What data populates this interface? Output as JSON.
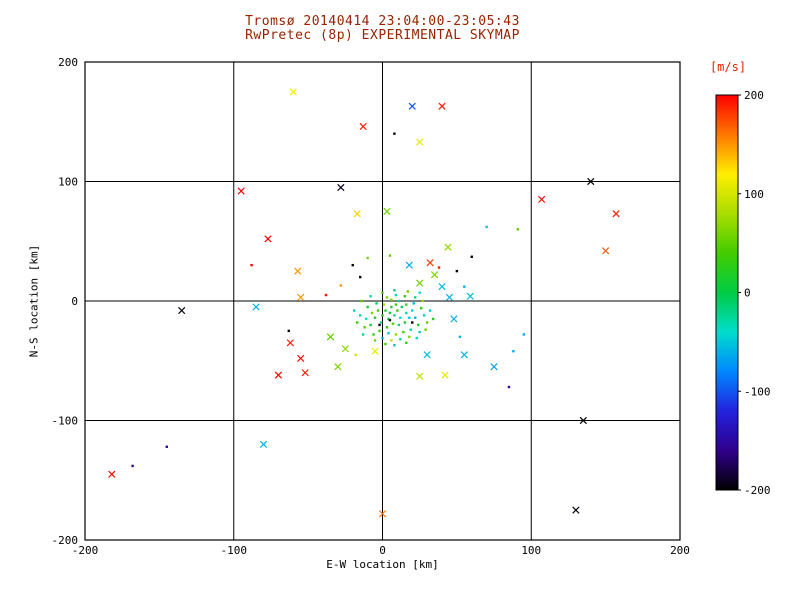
{
  "colors": {
    "background": "#ffffff",
    "title_text": "#992200",
    "colorbar_label": "#ee2200",
    "axis_text": "#000000",
    "plot_frame": "#000000"
  },
  "chart_data": {
    "type": "scatter",
    "title_line1": "Tromsø 20140414 23:04:00-23:05:43",
    "title_line2": "RwPretec (8p) EXPERIMENTAL SKYMAP",
    "xlabel": "E-W location [km]",
    "ylabel": "N-S location [km]",
    "axes": {
      "xlim": [
        -200,
        200
      ],
      "ylim": [
        -200,
        200
      ],
      "xticks": [
        -200,
        -100,
        0,
        100,
        200
      ],
      "yticks": [
        -200,
        -100,
        0,
        100,
        200
      ],
      "grid_lines": [
        -100,
        0,
        100
      ],
      "grid": true
    },
    "colorbar": {
      "label": "[m/s]",
      "ticks": [
        200,
        100,
        0,
        -100,
        -200
      ],
      "vmin": -200,
      "vmax": 200
    },
    "colormap": [
      {
        "v": -200,
        "color": "#000000"
      },
      {
        "v": -160,
        "color": "#30008c"
      },
      {
        "v": -120,
        "color": "#2222dd"
      },
      {
        "v": -80,
        "color": "#0088ff"
      },
      {
        "v": -40,
        "color": "#00ddcc"
      },
      {
        "v": 0,
        "color": "#00cc44"
      },
      {
        "v": 40,
        "color": "#44cc00"
      },
      {
        "v": 80,
        "color": "#aadd00"
      },
      {
        "v": 120,
        "color": "#ffee00"
      },
      {
        "v": 160,
        "color": "#ff7700"
      },
      {
        "v": 200,
        "color": "#ff0000"
      }
    ],
    "point_format": [
      "x_km",
      "y_km",
      "velocity_m_per_s",
      "marker"
    ],
    "points": [
      [
        -60,
        175,
        120,
        "x"
      ],
      [
        20,
        163,
        -100,
        "x"
      ],
      [
        40,
        163,
        190,
        "x"
      ],
      [
        -13,
        146,
        190,
        "x"
      ],
      [
        8,
        140,
        -200,
        "d"
      ],
      [
        25,
        133,
        110,
        "x"
      ],
      [
        -95,
        92,
        200,
        "x"
      ],
      [
        -28,
        95,
        -190,
        "x"
      ],
      [
        140,
        100,
        -200,
        "x"
      ],
      [
        107,
        85,
        195,
        "x"
      ],
      [
        -17,
        73,
        130,
        "x"
      ],
      [
        3,
        75,
        60,
        "x"
      ],
      [
        157,
        73,
        190,
        "x"
      ],
      [
        -77,
        52,
        200,
        "x"
      ],
      [
        150,
        42,
        170,
        "x"
      ],
      [
        91,
        60,
        50,
        "d"
      ],
      [
        44,
        45,
        70,
        "x"
      ],
      [
        60,
        37,
        -200,
        "d"
      ],
      [
        -88,
        30,
        200,
        "d"
      ],
      [
        -57,
        25,
        150,
        "x"
      ],
      [
        -85,
        -5,
        -60,
        "x"
      ],
      [
        -55,
        3,
        150,
        "x"
      ],
      [
        -135,
        -8,
        -195,
        "x"
      ],
      [
        -63,
        -25,
        -200,
        "d"
      ],
      [
        -62,
        -35,
        190,
        "x"
      ],
      [
        -55,
        -48,
        195,
        "x"
      ],
      [
        -70,
        -62,
        200,
        "x"
      ],
      [
        -52,
        -60,
        190,
        "x"
      ],
      [
        30,
        -45,
        -55,
        "x"
      ],
      [
        25,
        -63,
        90,
        "x"
      ],
      [
        42,
        -62,
        110,
        "x"
      ],
      [
        55,
        -45,
        -60,
        "x"
      ],
      [
        75,
        -55,
        -65,
        "x"
      ],
      [
        88,
        -42,
        -60,
        "d"
      ],
      [
        85,
        -72,
        -150,
        "d"
      ],
      [
        -80,
        -120,
        -60,
        "x"
      ],
      [
        135,
        -100,
        -200,
        "x"
      ],
      [
        130,
        -175,
        -195,
        "x"
      ],
      [
        0,
        -178,
        160,
        "x"
      ],
      [
        -182,
        -145,
        195,
        "x"
      ],
      [
        -168,
        -138,
        -150,
        "d"
      ],
      [
        -145,
        -122,
        -150,
        "d"
      ],
      [
        70,
        62,
        -50,
        "d"
      ],
      [
        95,
        -28,
        -60,
        "d"
      ],
      [
        -20,
        30,
        -200,
        "d"
      ],
      [
        -10,
        36,
        60,
        "d"
      ],
      [
        5,
        38,
        50,
        "d"
      ],
      [
        18,
        30,
        -60,
        "x"
      ],
      [
        35,
        22,
        60,
        "x"
      ],
      [
        40,
        12,
        -55,
        "x"
      ],
      [
        32,
        32,
        180,
        "x"
      ],
      [
        38,
        28,
        190,
        "d"
      ],
      [
        50,
        25,
        -200,
        "d"
      ],
      [
        55,
        12,
        -60,
        "d"
      ],
      [
        -28,
        13,
        150,
        "d"
      ],
      [
        -38,
        5,
        195,
        "d"
      ],
      [
        25,
        15,
        55,
        "x"
      ],
      [
        45,
        3,
        -60,
        "x"
      ],
      [
        59,
        4,
        -55,
        "x"
      ],
      [
        -15,
        20,
        -195,
        "d"
      ],
      [
        48,
        -15,
        -60,
        "x"
      ],
      [
        52,
        -30,
        -55,
        "d"
      ],
      [
        -25,
        -40,
        70,
        "x"
      ],
      [
        -18,
        -45,
        100,
        "d"
      ],
      [
        -30,
        -55,
        60,
        "x"
      ],
      [
        -5,
        -42,
        110,
        "x"
      ],
      [
        -35,
        -30,
        50,
        "x"
      ],
      [
        2,
        -8,
        20,
        "d"
      ],
      [
        5,
        -10,
        10,
        "d"
      ],
      [
        8,
        -12,
        -20,
        "d"
      ],
      [
        10,
        -8,
        30,
        "d"
      ],
      [
        12,
        -14,
        -40,
        "d"
      ],
      [
        4,
        -15,
        0,
        "d"
      ],
      [
        0,
        -12,
        25,
        "d"
      ],
      [
        -3,
        -8,
        40,
        "d"
      ],
      [
        6,
        -5,
        15,
        "d"
      ],
      [
        9,
        -3,
        35,
        "d"
      ],
      [
        13,
        -5,
        -10,
        "d"
      ],
      [
        16,
        -10,
        -30,
        "d"
      ],
      [
        18,
        -14,
        -50,
        "d"
      ],
      [
        15,
        -18,
        10,
        "d"
      ],
      [
        11,
        -20,
        -15,
        "d"
      ],
      [
        7,
        -19,
        45,
        "d"
      ],
      [
        3,
        -22,
        30,
        "d"
      ],
      [
        -1,
        -18,
        -25,
        "d"
      ],
      [
        -5,
        -14,
        20,
        "d"
      ],
      [
        -7,
        -10,
        60,
        "d"
      ],
      [
        20,
        -8,
        -45,
        "d"
      ],
      [
        22,
        -14,
        -60,
        "d"
      ],
      [
        24,
        -20,
        15,
        "d"
      ],
      [
        19,
        -24,
        -30,
        "d"
      ],
      [
        14,
        -26,
        40,
        "d"
      ],
      [
        9,
        -28,
        70,
        "d"
      ],
      [
        4,
        -27,
        -50,
        "d"
      ],
      [
        -2,
        -25,
        35,
        "d"
      ],
      [
        -8,
        -20,
        10,
        "d"
      ],
      [
        -11,
        -15,
        -40,
        "d"
      ],
      [
        1,
        -3,
        80,
        "d"
      ],
      [
        6,
        1,
        55,
        "d"
      ],
      [
        11,
        0,
        -20,
        "d"
      ],
      [
        16,
        -3,
        25,
        "d"
      ],
      [
        21,
        -2,
        -55,
        "d"
      ],
      [
        26,
        -6,
        30,
        "d"
      ],
      [
        28,
        -12,
        -35,
        "d"
      ],
      [
        30,
        -18,
        50,
        "d"
      ],
      [
        25,
        -26,
        -45,
        "d"
      ],
      [
        18,
        -30,
        60,
        "d"
      ],
      [
        12,
        -32,
        -25,
        "d"
      ],
      [
        6,
        -33,
        90,
        "d"
      ],
      [
        0,
        -31,
        -60,
        "d"
      ],
      [
        -6,
        -28,
        25,
        "d"
      ],
      [
        -12,
        -22,
        45,
        "d"
      ],
      [
        -15,
        -12,
        -30,
        "d"
      ],
      [
        -10,
        -5,
        15,
        "d"
      ],
      [
        -4,
        -2,
        -10,
        "d"
      ],
      [
        3,
        3,
        65,
        "d"
      ],
      [
        9,
        5,
        -40,
        "d"
      ],
      [
        15,
        4,
        30,
        "d"
      ],
      [
        22,
        3,
        -20,
        "d"
      ],
      [
        27,
        0,
        70,
        "d"
      ],
      [
        32,
        -8,
        -50,
        "d"
      ],
      [
        34,
        -15,
        20,
        "d"
      ],
      [
        29,
        -24,
        55,
        "d"
      ],
      [
        23,
        -31,
        -35,
        "d"
      ],
      [
        16,
        -35,
        25,
        "d"
      ],
      [
        8,
        -37,
        -55,
        "d"
      ],
      [
        2,
        -36,
        40,
        "d"
      ],
      [
        -5,
        -33,
        60,
        "d"
      ],
      [
        -13,
        -28,
        -20,
        "d"
      ],
      [
        -17,
        -18,
        35,
        "d"
      ],
      [
        -19,
        -8,
        -45,
        "d"
      ],
      [
        -14,
        0,
        50,
        "d"
      ],
      [
        -8,
        4,
        -30,
        "d"
      ],
      [
        0,
        7,
        45,
        "d"
      ],
      [
        8,
        9,
        -15,
        "d"
      ],
      [
        17,
        8,
        55,
        "d"
      ],
      [
        25,
        7,
        -40,
        "d"
      ],
      [
        5,
        -16,
        -200,
        "d"
      ],
      [
        -2,
        -20,
        -195,
        "d"
      ],
      [
        20,
        -18,
        -200,
        "d"
      ]
    ]
  }
}
